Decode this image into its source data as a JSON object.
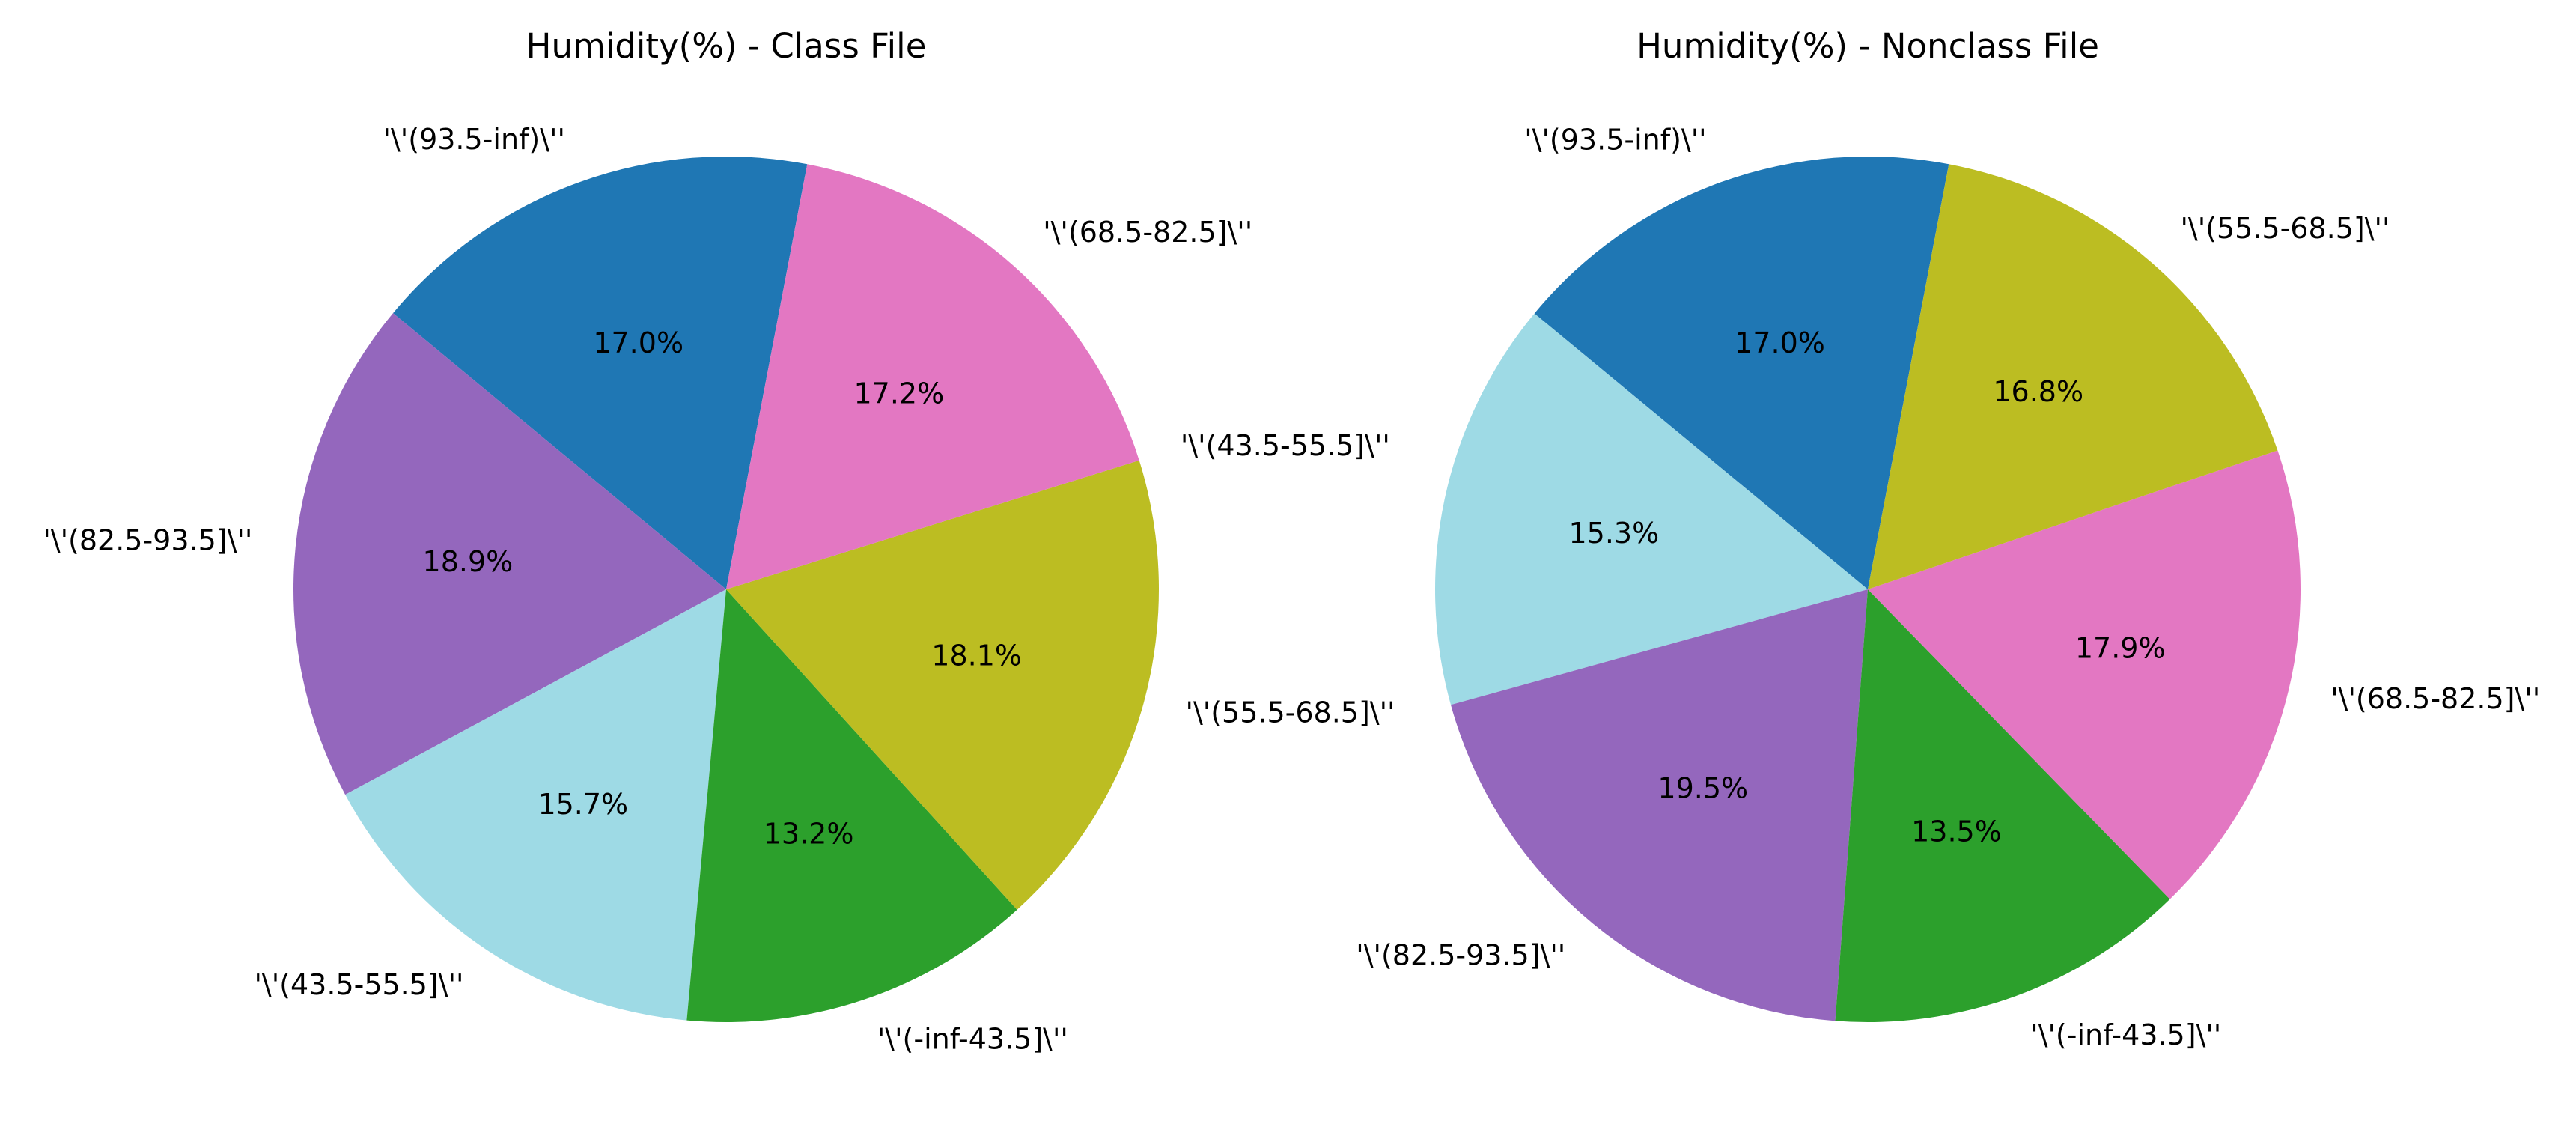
{
  "chart_data": [
    {
      "type": "pie",
      "title": "Humidity(%) - Class File",
      "start_angle_deg": 79.2,
      "slices": [
        {
          "label": "'\\'(93.5-inf)\\''",
          "value": 17.0,
          "pct_label": "17.0%",
          "color": "#1f77b4"
        },
        {
          "label": "'\\'(82.5-93.5]\\''",
          "value": 18.9,
          "pct_label": "18.9%",
          "color": "#9467bd"
        },
        {
          "label": "'\\'(43.5-55.5]\\''",
          "value": 15.7,
          "pct_label": "15.7%",
          "color": "#9edae5"
        },
        {
          "label": "'\\'(-inf-43.5]\\''",
          "value": 13.2,
          "pct_label": "13.2%",
          "color": "#2ca02c"
        },
        {
          "label": "'\\'(55.5-68.5]\\''",
          "value": 18.1,
          "pct_label": "18.1%",
          "color": "#bcbd22"
        },
        {
          "label": "'\\'(43.5-55.5]\\''",
          "value": 0.0001,
          "pct_label": "",
          "color": "#bcbd22"
        },
        {
          "label": "'\\'(68.5-82.5]\\''",
          "value": 17.2,
          "pct_label": "17.2%",
          "color": "#e377c2"
        }
      ]
    },
    {
      "type": "pie",
      "title": "Humidity(%) - Nonclass File",
      "start_angle_deg": 79.2,
      "slices": [
        {
          "label": "'\\'(93.5-inf)\\''",
          "value": 17.0,
          "pct_label": "17.0%",
          "color": "#1f77b4"
        },
        {
          "label": "",
          "value": 15.3,
          "pct_label": "15.3%",
          "color": "#9edae5"
        },
        {
          "label": "'\\'(82.5-93.5]\\''",
          "value": 19.5,
          "pct_label": "19.5%",
          "color": "#9467bd"
        },
        {
          "label": "'\\'(-inf-43.5]\\''",
          "value": 13.5,
          "pct_label": "13.5%",
          "color": "#2ca02c"
        },
        {
          "label": "'\\'(68.5-82.5]\\''",
          "value": 17.9,
          "pct_label": "17.9%",
          "color": "#e377c2"
        },
        {
          "label": "'\\'(55.5-68.5]\\''",
          "value": 16.8,
          "pct_label": "16.8%",
          "color": "#bcbd22"
        }
      ]
    }
  ]
}
